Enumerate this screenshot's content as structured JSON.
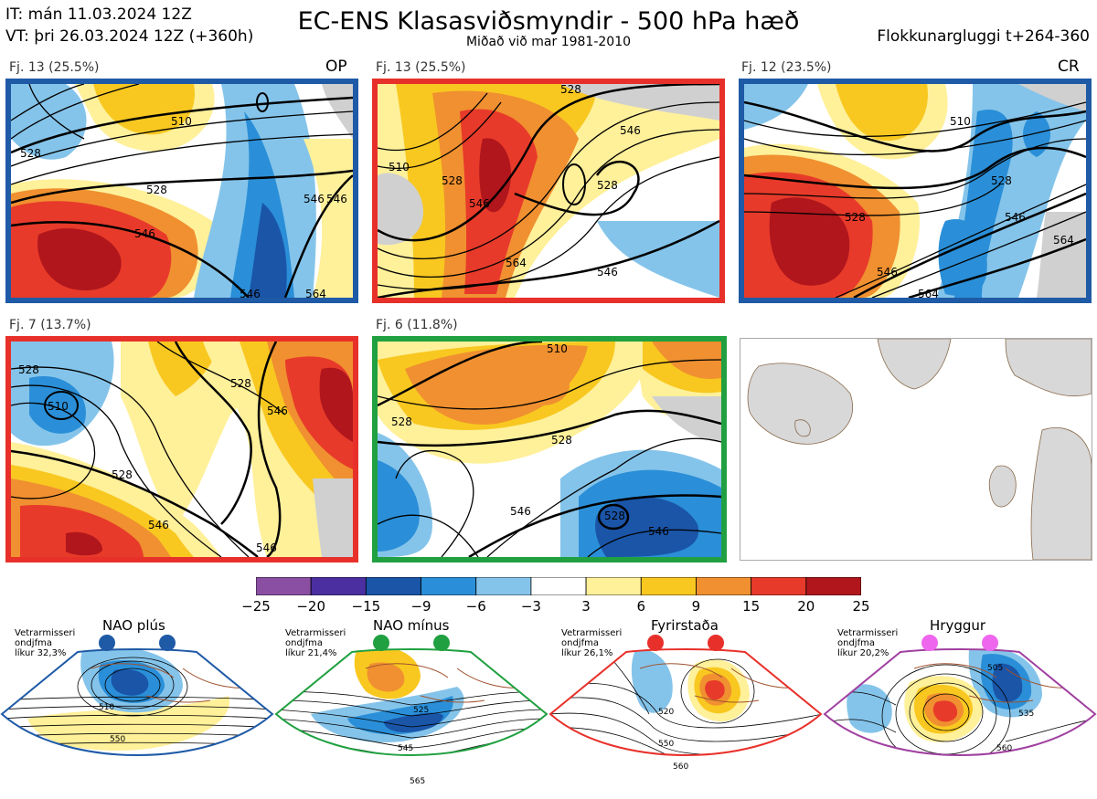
{
  "header": {
    "it": "IT: mán 11.03.2024 12Z",
    "vt": "VT: þri 26.03.2024 12Z  (+360h)",
    "title": "EC-ENS Klasasviðsmyndir - 500 hPa hæð",
    "subtitle": "Miðað við mar 1981-2010",
    "window": "Flokkunargluggi t+264-360"
  },
  "panels": [
    {
      "label": "Fj. 13 (25.5%)",
      "corner": "OP",
      "border_color": "#1f5aa6"
    },
    {
      "label": "Fj. 13 (25.5%)",
      "corner": "",
      "border_color": "#e8302a"
    },
    {
      "label": "Fj. 12 (23.5%)",
      "corner": "CR",
      "border_color": "#1f5aa6"
    },
    {
      "label": "Fj. 7 (13.7%)",
      "corner": "",
      "border_color": "#e8302a"
    },
    {
      "label": "Fj. 6 (11.8%)",
      "corner": "",
      "border_color": "#20a040"
    }
  ],
  "contour_labels": {
    "p1": [
      "510",
      "528",
      "528",
      "546",
      "546",
      "546",
      "546",
      "564"
    ],
    "p2": [
      "528",
      "546",
      "510",
      "528",
      "546",
      "528",
      "546",
      "564"
    ],
    "p3": [
      "510",
      "528",
      "528",
      "546",
      "546",
      "564",
      "564"
    ],
    "p4": [
      "528",
      "510",
      "528",
      "528",
      "546",
      "546",
      "546"
    ],
    "p5": [
      "510",
      "528",
      "528",
      "546",
      "528",
      "546"
    ]
  },
  "colorbar": {
    "ticks": [
      "−25",
      "−20",
      "−15",
      "−9",
      "−6",
      "−3",
      "3",
      "6",
      "9",
      "15",
      "20",
      "25"
    ],
    "colors": [
      "#8a4fa3",
      "#4b2fa0",
      "#1a55a8",
      "#2a8fd8",
      "#85c4ea",
      "#ffffff",
      "#fff09a",
      "#f8c820",
      "#f09030",
      "#e83a2a",
      "#b0161c"
    ]
  },
  "regimes": [
    {
      "name": "NAO plús",
      "line1": "Vetrarmisseri",
      "line2": "ondjfma",
      "line3": "líkur 32,3%",
      "color": "#1f5aa6",
      "dot": "#1f5aa6",
      "labels": [
        "510",
        "550"
      ]
    },
    {
      "name": "NAO mínus",
      "line1": "Vetrarmisseri",
      "line2": "ondjfma",
      "line3": "líkur 21,4%",
      "color": "#20a040",
      "dot": "#20a040",
      "labels": [
        "525",
        "545",
        "565"
      ]
    },
    {
      "name": "Fyrirstaða",
      "line1": "Vetrarmisseri",
      "line2": "ondjfma",
      "line3": "líkur 26,1%",
      "color": "#e8302a",
      "dot": "#e8302a",
      "labels": [
        "520",
        "550",
        "560"
      ]
    },
    {
      "name": "Hryggur",
      "line1": "Vetrarmisseri",
      "line2": "ondjfma",
      "line3": "líkur 20,2%",
      "color": "#a040a0",
      "dot": "#ee66ee",
      "labels": [
        "505",
        "535",
        "560"
      ]
    }
  ]
}
